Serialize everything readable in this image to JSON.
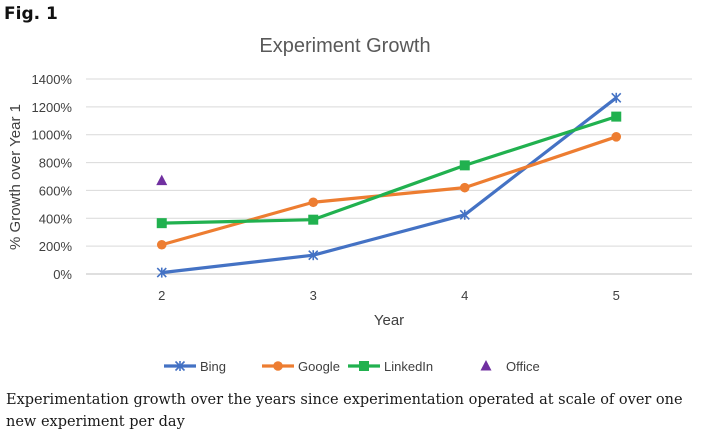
{
  "fig_label": "Fig. 1",
  "caption": "Experimentation growth over the years since experimentation operated at scale of over one new experiment per day",
  "chart_data": {
    "type": "line",
    "title": "Experiment Growth",
    "xlabel": "Year",
    "ylabel": "% Growth over Year 1",
    "categories": [
      2,
      3,
      4,
      5
    ],
    "ylim": [
      0,
      1400
    ],
    "yticks": [
      0,
      200,
      400,
      600,
      800,
      1000,
      1200,
      1400
    ],
    "ytick_labels": [
      "0%",
      "200%",
      "400%",
      "600%",
      "800%",
      "1000%",
      "1200%",
      "1400%"
    ],
    "grid": true,
    "legend_position": "bottom",
    "series": [
      {
        "name": "Bing",
        "values": [
          10,
          135,
          425,
          1265
        ],
        "color": "#4472C4",
        "marker": "asterisk"
      },
      {
        "name": "Google",
        "values": [
          210,
          515,
          620,
          985
        ],
        "color": "#ED7D31",
        "marker": "circle"
      },
      {
        "name": "LinkedIn",
        "values": [
          365,
          390,
          780,
          1130
        ],
        "color": "#21B14F",
        "marker": "square"
      },
      {
        "name": "Office",
        "values": [
          670,
          null,
          null,
          null
        ],
        "color": "#7030A0",
        "marker": "triangle"
      }
    ]
  }
}
